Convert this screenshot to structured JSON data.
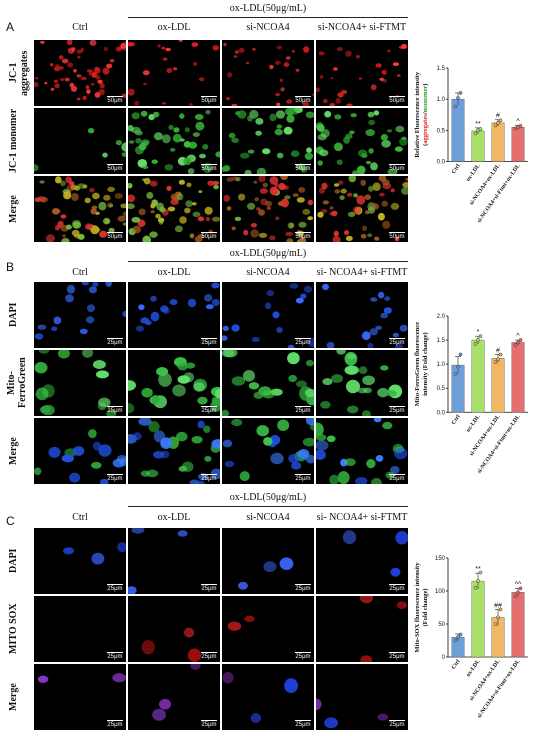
{
  "panels": [
    {
      "label": "A",
      "group_title": "ox-LDL(50μg/mL)",
      "columns": [
        "Ctrl",
        "ox-LDL",
        "si-NCOA4",
        "si-NCOA4+ si-FTMT"
      ],
      "rows": [
        "JC-1 aggregates",
        "JC-1 monomer",
        "Merge"
      ],
      "scale_text": "50μm",
      "tile_palettes": [
        [
          [
            "#e02020",
            "#d93030",
            "#c01818",
            "#e02828"
          ]
        ],
        [
          [
            "#40c040",
            "#50d050",
            "#38b038",
            "#48c848"
          ]
        ],
        [
          [
            "#e03030",
            "#b8a020",
            "#c8b830",
            "#70b040"
          ]
        ]
      ]
    },
    {
      "label": "B",
      "group_title": "ox-LDL(50μg/mL)",
      "columns": [
        "Ctrl",
        "ox-LDL",
        "si-NCOA4",
        "si- NCOA4+ si-FTMT"
      ],
      "rows": [
        "DAPI",
        "Mito-FerroGreen",
        "Merge"
      ],
      "scale_text": "25μm"
    },
    {
      "label": "C",
      "group_title": "ox-LDL(50μg/mL)",
      "columns": [
        "Ctrl",
        "ox-LDL",
        "si-NCOA4",
        "si- NCOA4+ si-FTMT"
      ],
      "rows": [
        "DAPI",
        "MITO SOX",
        "Merge"
      ],
      "scale_text": "25μm"
    }
  ],
  "chart_data": [
    {
      "type": "bar",
      "categories": [
        "Ctrl",
        "ox-LDL",
        "si-NCOA4+ox-LDL",
        "si-NCOA4+si-Ftmt+ox-LDL"
      ],
      "values": [
        1.0,
        0.49,
        0.62,
        0.55
      ],
      "errors": [
        0.1,
        0.05,
        0.05,
        0.03
      ],
      "points": [
        [
          0.88,
          1.02,
          1.1
        ],
        [
          0.45,
          0.5,
          0.52
        ],
        [
          0.58,
          0.62,
          0.66
        ],
        [
          0.53,
          0.55,
          0.57
        ]
      ],
      "significance": [
        "",
        "**",
        "#",
        "^"
      ],
      "ylabel_parts": [
        "Relative Fluorescence intensity",
        "(",
        "aggregates",
        "/",
        "monomer",
        ")"
      ],
      "ylim": [
        0,
        1.5
      ],
      "yticks": [
        "0.0",
        "0.5",
        "1.0",
        "1.5"
      ],
      "colors": [
        "#6f9fd8",
        "#a8e06a",
        "#f0b764",
        "#e56e6e"
      ]
    },
    {
      "type": "bar",
      "categories": [
        "Ctrl",
        "ox-LDL",
        "si-NCOA4+ox-LDL",
        "si-NCOA4+si-Ftmt+ox-LDL"
      ],
      "values": [
        0.98,
        1.5,
        1.12,
        1.45
      ],
      "errors": [
        0.18,
        0.08,
        0.08,
        0.05
      ],
      "points": [
        [
          0.8,
          0.95,
          1.2
        ],
        [
          1.42,
          1.5,
          1.58
        ],
        [
          1.04,
          1.1,
          1.2
        ],
        [
          1.4,
          1.45,
          1.5
        ]
      ],
      "significance": [
        "",
        "*",
        "#",
        "^"
      ],
      "ylabel_parts": [
        "Mito-FerroGreen fluorescence",
        "intensity (Fold change)"
      ],
      "ylim": [
        0,
        2.0
      ],
      "yticks": [
        "0.0",
        "0.5",
        "1.0",
        "1.5",
        "2.0"
      ],
      "colors": [
        "#6f9fd8",
        "#a8e06a",
        "#f0b764",
        "#e56e6e"
      ]
    },
    {
      "type": "bar",
      "categories": [
        "Ctrl",
        "ox-LDL",
        "si-NCOA4+ox-LDL",
        "si-NCOA4+si-Ftmt+ox-LDL"
      ],
      "values": [
        30,
        115,
        60,
        98
      ],
      "errors": [
        5,
        12,
        12,
        6
      ],
      "points": [
        [
          25,
          30,
          34
        ],
        [
          105,
          115,
          128
        ],
        [
          50,
          60,
          72
        ],
        [
          92,
          98,
          104
        ]
      ],
      "significance": [
        "",
        "**",
        "##",
        "^^"
      ],
      "ylabel_parts": [
        "Mito-SOX fluorescence intensity",
        "(Fold change)"
      ],
      "ylim": [
        0,
        150
      ],
      "yticks": [
        "0",
        "50",
        "100",
        "150"
      ],
      "colors": [
        "#6f9fd8",
        "#a8e06a",
        "#f0b764",
        "#e56e6e"
      ]
    }
  ]
}
